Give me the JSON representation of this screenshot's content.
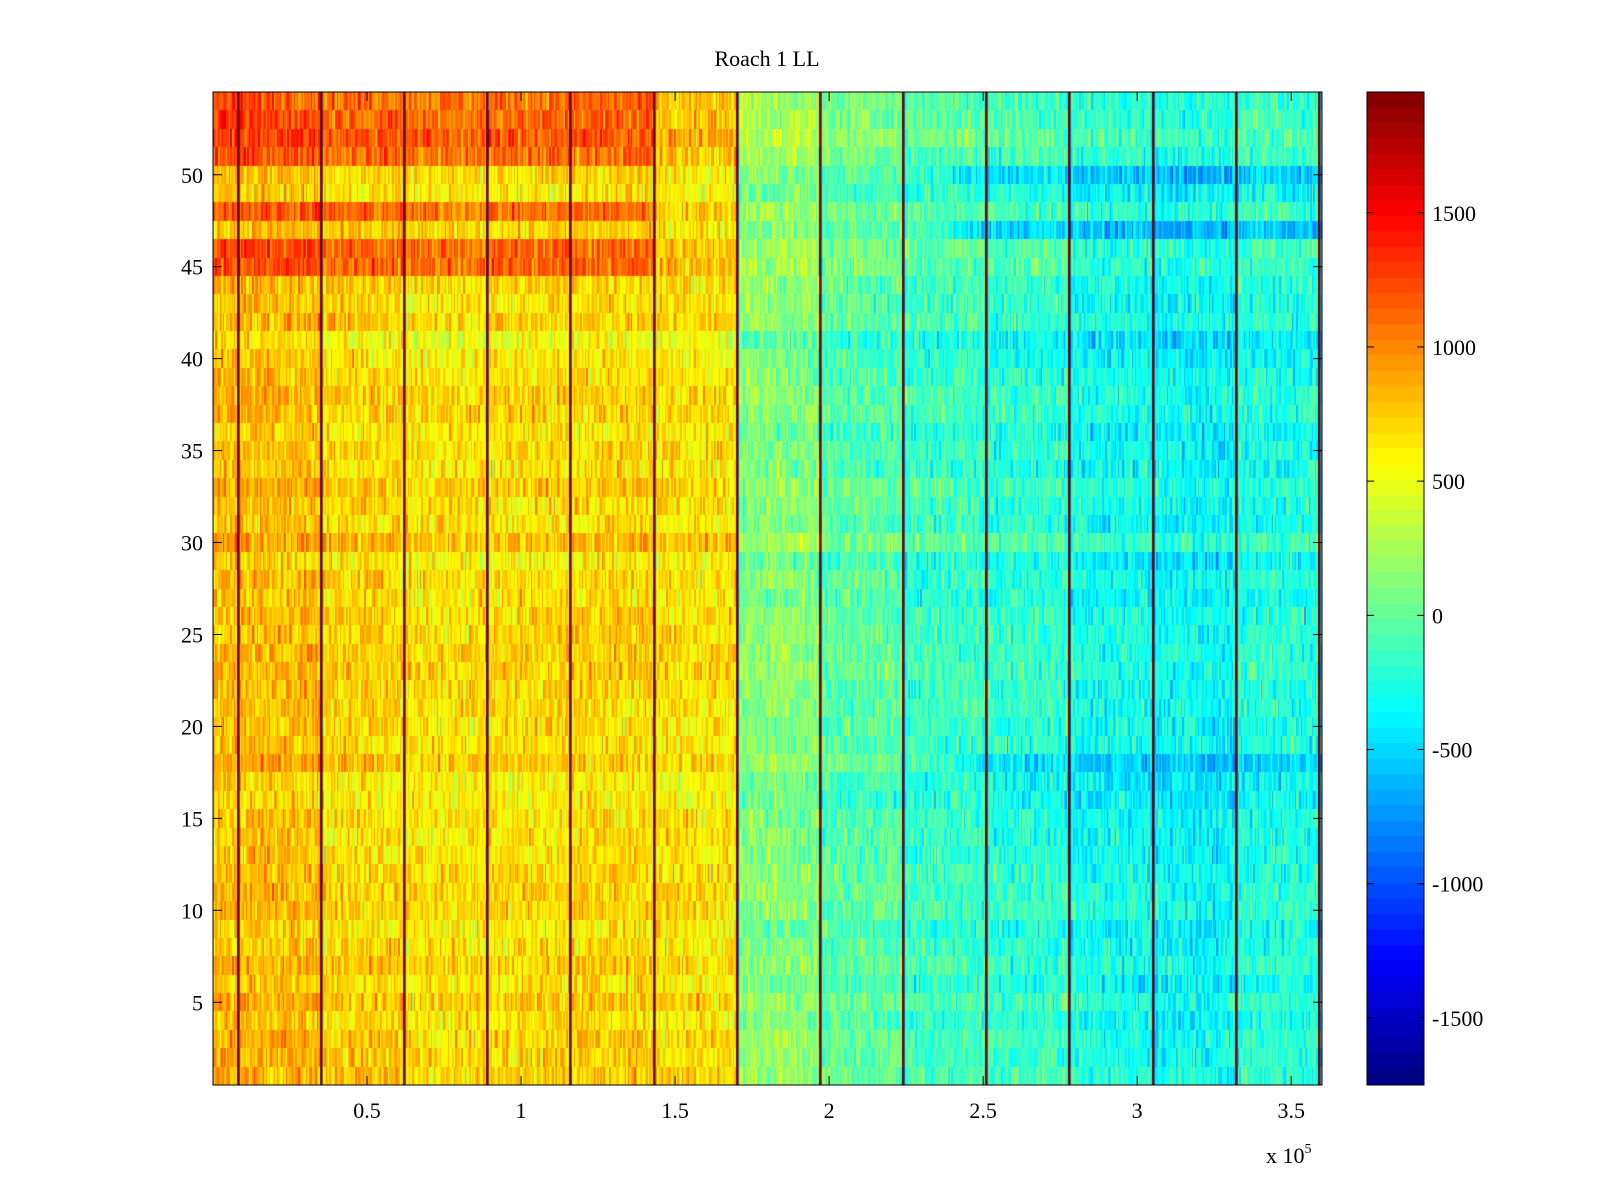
{
  "figure": {
    "title": "Roach 1 LL",
    "x_multiplier_base": "x 10",
    "x_multiplier_exp": "5"
  },
  "chart_data": {
    "type": "heatmap",
    "title": "Roach 1 LL",
    "xlabel": "",
    "ylabel": "",
    "xlim": [
      0,
      360000
    ],
    "ylim": [
      0.5,
      54.5
    ],
    "x_ticks": [
      50000,
      100000,
      150000,
      200000,
      250000,
      300000,
      350000
    ],
    "x_tick_labels": [
      "0.5",
      "1",
      "1.5",
      "2",
      "2.5",
      "3",
      "3.5"
    ],
    "x_scale_note": "x 10^5",
    "y_ticks": [
      5,
      10,
      15,
      20,
      25,
      30,
      35,
      40,
      45,
      50
    ],
    "y_tick_labels": [
      "5",
      "10",
      "15",
      "20",
      "25",
      "30",
      "35",
      "40",
      "45",
      "50"
    ],
    "rows": 54,
    "colormap": "jet",
    "clim": [
      -1750,
      1950
    ],
    "colorbar_ticks": [
      1500,
      1000,
      500,
      0,
      -500,
      -1000,
      -1500
    ],
    "colorbar_tick_labels": [
      "1500",
      "1000",
      "500",
      "0",
      "-500",
      "-1000",
      "-1500"
    ],
    "segment_boundaries_x": [
      8000,
      35000,
      62000,
      89000,
      116000,
      143000,
      170000,
      197000,
      224000,
      251000,
      278000,
      305000,
      332000,
      359000
    ],
    "segment_mean_values": [
      800,
      700,
      650,
      680,
      700,
      650,
      120,
      -50,
      -150,
      -200,
      -300,
      -350,
      -250,
      -200
    ],
    "row_notes": {
      "high_rows": [
        45,
        46,
        48,
        51,
        52,
        53,
        54
      ],
      "low_rows_right_side": [
        18,
        47,
        50
      ]
    }
  }
}
